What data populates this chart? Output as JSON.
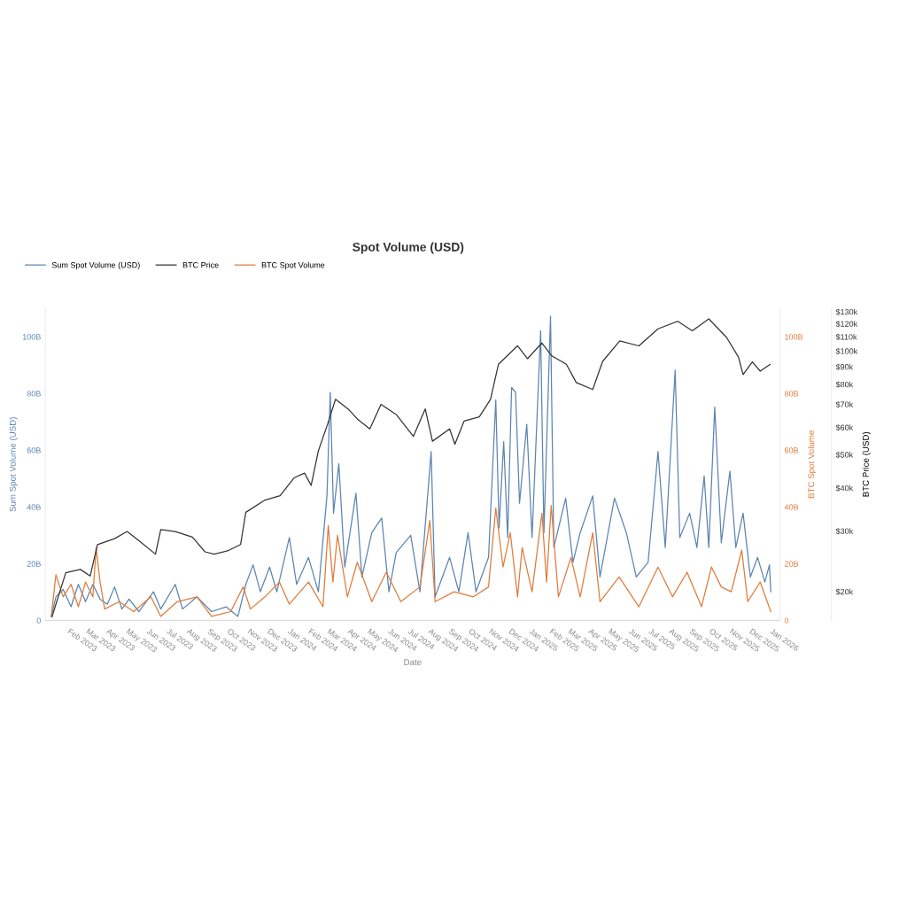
{
  "chart_data": {
    "type": "line",
    "title": "Spot Volume (USD)",
    "xlabel": "Date",
    "ylabel": "Sum Spot Volume (USD)",
    "y2label": "BTC Spot Volume",
    "y3label": "BTC Price (USD)",
    "legend": "top left",
    "grid": false,
    "marker": "none",
    "line_style": "solid",
    "log": "y3",
    "xlim": [
      "2022-12-25",
      "2026-01-12"
    ],
    "xticks": [
      {
        "value": "2023-02-01",
        "label": "Feb 2023"
      },
      {
        "value": "2023-03-01",
        "label": "Mar 2023"
      },
      {
        "value": "2023-04-01",
        "label": "Apr 2023"
      },
      {
        "value": "2023-05-01",
        "label": "May 2023"
      },
      {
        "value": "2023-06-01",
        "label": "Jun 2023"
      },
      {
        "value": "2023-07-01",
        "label": "Jul 2023"
      },
      {
        "value": "2023-08-01",
        "label": "Aug 2023"
      },
      {
        "value": "2023-09-01",
        "label": "Sep 2023"
      },
      {
        "value": "2023-10-01",
        "label": "Oct 2023"
      },
      {
        "value": "2023-11-01",
        "label": "Nov 2023"
      },
      {
        "value": "2023-12-01",
        "label": "Dec 2023"
      },
      {
        "value": "2024-01-01",
        "label": "Jan 2024"
      },
      {
        "value": "2024-02-01",
        "label": "Feb 2024"
      },
      {
        "value": "2024-03-01",
        "label": "Mar 2024"
      },
      {
        "value": "2024-04-01",
        "label": "Apr 2024"
      },
      {
        "value": "2024-05-01",
        "label": "May 2024"
      },
      {
        "value": "2024-06-01",
        "label": "Jun 2024"
      },
      {
        "value": "2024-07-01",
        "label": "Jul 2024"
      },
      {
        "value": "2024-08-01",
        "label": "Aug 2024"
      },
      {
        "value": "2024-09-01",
        "label": "Sep 2024"
      },
      {
        "value": "2024-10-01",
        "label": "Oct 2024"
      },
      {
        "value": "2024-11-01",
        "label": "Nov 2024"
      },
      {
        "value": "2024-12-01",
        "label": "Dec 2024"
      },
      {
        "value": "2025-01-01",
        "label": "Jan 2025"
      },
      {
        "value": "2025-02-01",
        "label": "Feb 2025"
      },
      {
        "value": "2025-03-01",
        "label": "Mar 2025"
      },
      {
        "value": "2025-04-01",
        "label": "Apr 2025"
      },
      {
        "value": "2025-05-01",
        "label": "May 2025"
      },
      {
        "value": "2025-06-01",
        "label": "Jun 2025"
      },
      {
        "value": "2025-07-01",
        "label": "Jul 2025"
      },
      {
        "value": "2025-08-01",
        "label": "Aug 2025"
      },
      {
        "value": "2025-09-01",
        "label": "Sep 2025"
      },
      {
        "value": "2025-10-01",
        "label": "Oct 2025"
      },
      {
        "value": "2025-11-01",
        "label": "Nov 2025"
      },
      {
        "value": "2025-12-01",
        "label": "Dec 2025"
      },
      {
        "value": "2026-01-01",
        "label": "Jan 2026"
      }
    ],
    "ylim": [
      0,
      110
    ],
    "yticks": [
      0,
      {
        "value": 20,
        "label": "20B"
      },
      {
        "value": 40,
        "label": "40B"
      },
      {
        "value": 60,
        "label": "60B"
      },
      {
        "value": 80,
        "label": "80B"
      },
      {
        "value": 100,
        "label": "100B"
      }
    ],
    "y2lim": [
      0,
      110
    ],
    "y2ticks": [
      0,
      {
        "value": 20,
        "label": "20B"
      },
      {
        "value": 40,
        "label": "40B"
      },
      {
        "value": 60,
        "label": "60B"
      },
      {
        "value": 80,
        "label": "80B"
      },
      {
        "value": 100,
        "label": "100B"
      }
    ],
    "y3lim": [
      16500,
      133000
    ],
    "y3ticks": [
      {
        "value": 20000,
        "label": "$20k"
      },
      {
        "value": 30000,
        "label": "$30k"
      },
      {
        "value": 40000,
        "label": "$40k"
      },
      {
        "value": 50000,
        "label": "$50k"
      },
      {
        "value": 60000,
        "label": "$60k"
      },
      {
        "value": 70000,
        "label": "$70k"
      },
      {
        "value": 80000,
        "label": "$80k"
      },
      {
        "value": 90000,
        "label": "$90k"
      },
      {
        "value": 100000,
        "label": "$100k"
      },
      {
        "value": 110000,
        "label": "$110k"
      },
      {
        "value": 120000,
        "label": "$120k"
      },
      {
        "value": 130000,
        "label": "$130k"
      }
    ],
    "series": [
      {
        "name": "Sum Spot Volume (USD)",
        "color": "#5b84b1",
        "axis": "y",
        "x": [
          "2023-01-03",
          "2023-01-10",
          "2023-01-21",
          "2023-02-02",
          "2023-02-13",
          "2023-02-24",
          "2023-03-07",
          "2023-03-18",
          "2023-03-29",
          "2023-04-09",
          "2023-04-20",
          "2023-05-01",
          "2023-05-16",
          "2023-06-07",
          "2023-06-18",
          "2023-07-10",
          "2023-07-21",
          "2023-08-12",
          "2023-09-03",
          "2023-09-25",
          "2023-10-13",
          "2023-10-25",
          "2023-11-05",
          "2023-11-16",
          "2023-11-30",
          "2023-12-11",
          "2023-12-30",
          "2024-01-10",
          "2024-01-28",
          "2024-02-12",
          "2024-02-25",
          "2024-03-01",
          "2024-03-06",
          "2024-03-14",
          "2024-03-23",
          "2024-04-09",
          "2024-04-18",
          "2024-05-03",
          "2024-05-18",
          "2024-05-29",
          "2024-06-09",
          "2024-07-01",
          "2024-07-15",
          "2024-08-01",
          "2024-08-07",
          "2024-08-29",
          "2024-09-12",
          "2024-09-26",
          "2024-10-08",
          "2024-10-27",
          "2024-11-07",
          "2024-11-12",
          "2024-11-19",
          "2024-11-25",
          "2024-12-01",
          "2024-12-07",
          "2024-12-13",
          "2024-12-24",
          "2025-01-01",
          "2025-01-14",
          "2025-01-19",
          "2025-01-29",
          "2025-02-03",
          "2025-02-21",
          "2025-03-04",
          "2025-03-15",
          "2025-04-03",
          "2025-04-14",
          "2025-05-06",
          "2025-05-24",
          "2025-06-08",
          "2025-06-26",
          "2025-07-11",
          "2025-07-22",
          "2025-08-06",
          "2025-08-13",
          "2025-08-28",
          "2025-09-08",
          "2025-09-19",
          "2025-09-26",
          "2025-10-05",
          "2025-10-15",
          "2025-10-28",
          "2025-11-06",
          "2025-11-17",
          "2025-11-28",
          "2025-12-09",
          "2025-12-20",
          "2025-12-27",
          "2025-12-29"
        ],
        "values": [
          1.4,
          8.3,
          10.9,
          4.8,
          12.7,
          6.6,
          12.7,
          7.5,
          5.7,
          11.8,
          4.0,
          7.5,
          3.1,
          10.1,
          4.0,
          12.7,
          4.0,
          8.3,
          3.1,
          4.8,
          1.4,
          12.7,
          19.6,
          10.1,
          18.8,
          10.1,
          29.2,
          12.7,
          22.2,
          10.1,
          43.9,
          80.4,
          37.8,
          55.2,
          18.8,
          44.8,
          15.3,
          30.9,
          36.1,
          10.1,
          23.9,
          30.0,
          10.1,
          59.5,
          8.3,
          22.2,
          10.1,
          30.9,
          10.1,
          22.2,
          77.8,
          32.6,
          63.0,
          29.2,
          82.1,
          80.4,
          41.3,
          69.1,
          29.2,
          102.1,
          30.9,
          107.3,
          25.7,
          43.1,
          20.5,
          30.9,
          43.9,
          15.3,
          43.1,
          30.9,
          15.3,
          20.5,
          59.5,
          25.7,
          88.2,
          29.2,
          37.8,
          25.7,
          50.9,
          25.7,
          75.2,
          27.4,
          52.6,
          25.7,
          37.8,
          15.3,
          22.2,
          13.5,
          19.6,
          10.1
        ]
      },
      {
        "name": "BTC Price",
        "color": "#333333",
        "axis": "y3",
        "x": [
          "2023-01-04",
          "2023-01-25",
          "2023-02-16",
          "2023-03-03",
          "2023-03-14",
          "2023-04-09",
          "2023-04-28",
          "2023-05-16",
          "2023-06-10",
          "2023-06-18",
          "2023-07-10",
          "2023-08-05",
          "2023-08-24",
          "2023-09-07",
          "2023-09-28",
          "2023-10-17",
          "2023-10-25",
          "2023-11-23",
          "2023-12-16",
          "2024-01-06",
          "2024-01-22",
          "2024-02-01",
          "2024-02-12",
          "2024-02-26",
          "2024-03-09",
          "2024-03-28",
          "2024-04-11",
          "2024-04-30",
          "2024-05-17",
          "2024-06-09",
          "2024-07-05",
          "2024-07-23",
          "2024-08-03",
          "2024-08-29",
          "2024-09-06",
          "2024-09-20",
          "2024-10-13",
          "2024-10-30",
          "2024-11-11",
          "2024-12-10",
          "2024-12-25",
          "2025-01-16",
          "2025-01-31",
          "2025-02-22",
          "2025-03-09",
          "2025-04-03",
          "2025-04-18",
          "2025-05-14",
          "2025-06-12",
          "2025-07-11",
          "2025-08-10",
          "2025-09-01",
          "2025-09-26",
          "2025-10-23",
          "2025-11-10",
          "2025-11-17",
          "2025-12-01",
          "2025-12-13",
          "2025-12-28"
        ],
        "values": [
          16900,
          22700,
          23200,
          22200,
          27400,
          28500,
          29900,
          28100,
          25700,
          30300,
          29900,
          28800,
          26100,
          25700,
          26300,
          27400,
          34000,
          36900,
          38000,
          42800,
          44200,
          40700,
          51300,
          61300,
          72400,
          67900,
          63500,
          59400,
          70000,
          65400,
          56500,
          67900,
          54700,
          59400,
          53600,
          62600,
          64400,
          72400,
          91500,
          103500,
          95000,
          105500,
          96800,
          91500,
          81000,
          77300,
          93300,
          107000,
          103500,
          116000,
          122000,
          114500,
          124000,
          109500,
          96000,
          85400,
          93000,
          87400,
          91500
        ]
      },
      {
        "name": "BTC Spot Volume",
        "color": "#e07b39",
        "axis": "y2",
        "x": [
          "2023-01-03",
          "2023-01-10",
          "2023-01-21",
          "2023-02-02",
          "2023-02-13",
          "2023-02-24",
          "2023-03-07",
          "2023-03-12",
          "2023-03-18",
          "2023-03-25",
          "2023-04-16",
          "2023-05-08",
          "2023-06-03",
          "2023-06-18",
          "2023-07-13",
          "2023-08-12",
          "2023-09-03",
          "2023-10-02",
          "2023-10-21",
          "2023-11-01",
          "2023-11-23",
          "2023-12-15",
          "2023-12-30",
          "2024-01-28",
          "2024-02-19",
          "2024-02-27",
          "2024-03-05",
          "2024-03-12",
          "2024-03-27",
          "2024-04-11",
          "2024-05-03",
          "2024-05-25",
          "2024-06-16",
          "2024-07-15",
          "2024-07-30",
          "2024-08-07",
          "2024-09-05",
          "2024-10-04",
          "2024-10-27",
          "2024-11-07",
          "2024-11-18",
          "2024-11-29",
          "2024-12-10",
          "2024-12-17",
          "2025-01-01",
          "2025-01-16",
          "2025-01-23",
          "2025-01-30",
          "2025-02-10",
          "2025-03-01",
          "2025-03-15",
          "2025-04-03",
          "2025-04-14",
          "2025-05-13",
          "2025-06-12",
          "2025-07-11",
          "2025-08-02",
          "2025-08-24",
          "2025-09-15",
          "2025-09-30",
          "2025-10-15",
          "2025-10-30",
          "2025-11-15",
          "2025-11-24",
          "2025-12-13",
          "2025-12-29"
        ],
        "values": [
          1.4,
          16.1,
          8.3,
          12.7,
          4.8,
          13.5,
          8.3,
          25.7,
          13.5,
          4.0,
          6.6,
          3.1,
          8.3,
          1.4,
          6.6,
          8.3,
          1.4,
          3.1,
          11.8,
          4.0,
          8.3,
          13.5,
          5.7,
          13.5,
          4.8,
          33.5,
          13.5,
          30.0,
          8.3,
          20.5,
          6.6,
          17.0,
          6.6,
          11.8,
          35.2,
          6.6,
          10.1,
          8.3,
          11.8,
          39.6,
          18.8,
          30.9,
          8.3,
          25.7,
          10.1,
          37.8,
          13.5,
          40.5,
          8.3,
          22.2,
          8.3,
          30.9,
          6.6,
          15.3,
          4.8,
          18.8,
          8.3,
          17.0,
          4.8,
          18.8,
          11.8,
          10.1,
          24.8,
          6.6,
          13.5,
          3.1
        ]
      }
    ]
  }
}
